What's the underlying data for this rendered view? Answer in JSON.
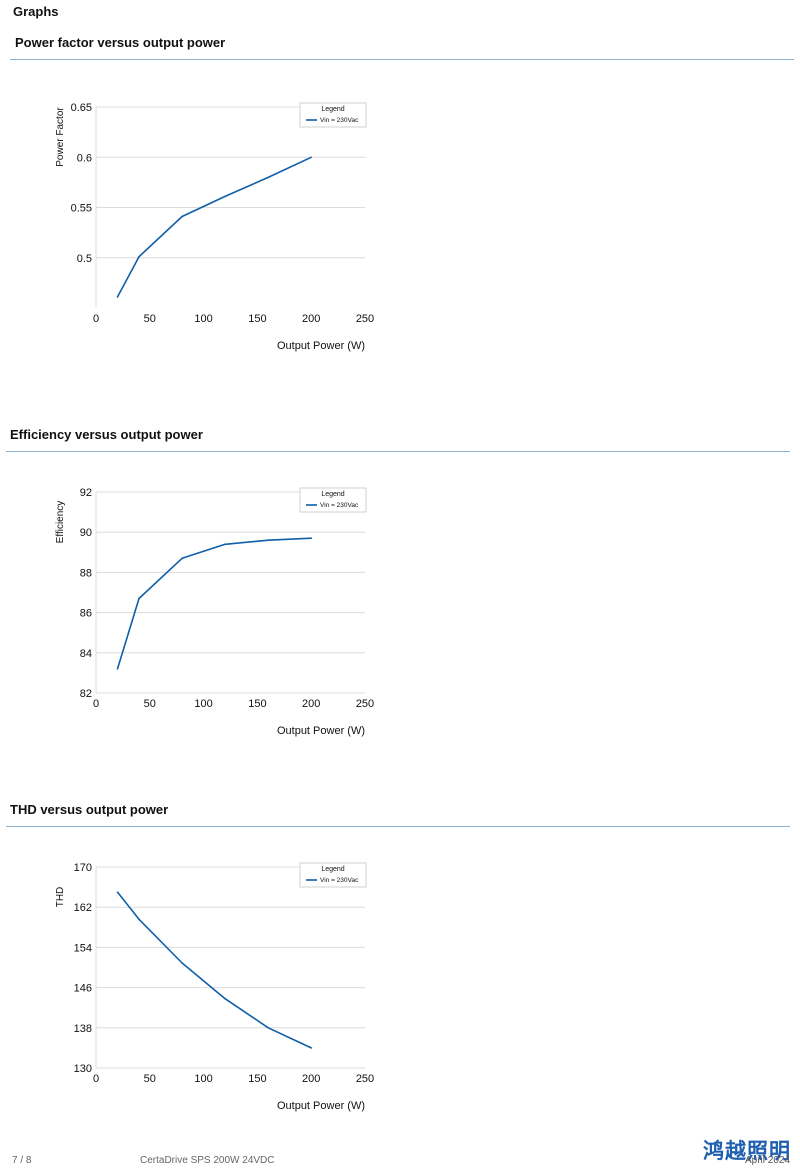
{
  "page": {
    "heading": "Graphs",
    "footer_page": "7 / 8",
    "footer_product": "CertaDrive SPS 200W 24VDC",
    "footer_date": "April 2024",
    "footer_logo": "鸿越照明"
  },
  "colors": {
    "line": "#0f5ea8",
    "rule": "#8fb2cf",
    "grid": "#dcdcdc"
  },
  "chart_data": [
    {
      "type": "line",
      "title": "Power factor versus output power",
      "xlabel": "Output Power (W)",
      "ylabel": "Power Factor",
      "xlim": [
        0,
        250
      ],
      "ylim": [
        0.45,
        0.65
      ],
      "xticks": [
        0,
        50,
        100,
        150,
        200,
        250
      ],
      "yticks": [
        0.5,
        0.55,
        0.6,
        0.65
      ],
      "ytick_labels": [
        "0.5",
        "0.55",
        "0.6",
        "0.65"
      ],
      "grid": true,
      "legend_title": "Legend",
      "legend_position": "top-right",
      "series": [
        {
          "name": "Vin = 230Vac",
          "x": [
            20,
            40,
            80,
            120,
            160,
            200
          ],
          "y": [
            0.461,
            0.501,
            0.541,
            0.561,
            0.58,
            0.6
          ]
        }
      ]
    },
    {
      "type": "line",
      "title": "Efficiency versus output power",
      "xlabel": "Output Power (W)",
      "ylabel": "Efficiency",
      "xlim": [
        0,
        250
      ],
      "ylim": [
        82,
        92
      ],
      "xticks": [
        0,
        50,
        100,
        150,
        200,
        250
      ],
      "yticks": [
        82,
        84,
        86,
        88,
        90,
        92
      ],
      "ytick_labels": [
        "82",
        "84",
        "86",
        "88",
        "90",
        "92"
      ],
      "grid": true,
      "legend_title": "Legend",
      "legend_position": "top-right",
      "series": [
        {
          "name": "Vin = 230Vac",
          "x": [
            20,
            40,
            80,
            120,
            160,
            200
          ],
          "y": [
            83.2,
            86.7,
            88.7,
            89.4,
            89.6,
            89.7
          ]
        }
      ]
    },
    {
      "type": "line",
      "title": "THD versus output power",
      "xlabel": "Output Power (W)",
      "ylabel": "THD",
      "xlim": [
        0,
        250
      ],
      "ylim": [
        130,
        170
      ],
      "xticks": [
        0,
        50,
        100,
        150,
        200,
        250
      ],
      "yticks": [
        130,
        138,
        146,
        154,
        162,
        170
      ],
      "ytick_labels": [
        "130",
        "138",
        "146",
        "154",
        "162",
        "170"
      ],
      "grid": true,
      "legend_title": "Legend",
      "legend_position": "top-right",
      "series": [
        {
          "name": "Vin = 230Vac",
          "x": [
            20,
            40,
            80,
            120,
            160,
            200
          ],
          "y": [
            165,
            159.6,
            150.9,
            143.8,
            138.0,
            134.0
          ]
        }
      ]
    }
  ]
}
